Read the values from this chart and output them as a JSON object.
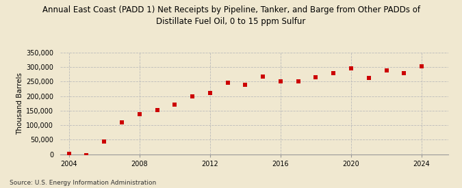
{
  "title": "Annual East Coast (PADD 1) Net Receipts by Pipeline, Tanker, and Barge from Other PADDs of\nDistillate Fuel Oil, 0 to 15 ppm Sulfur",
  "ylabel": "Thousand Barrels",
  "source": "Source: U.S. Energy Information Administration",
  "background_color": "#f0e8d0",
  "plot_bg_color": "#f0e8d0",
  "marker_color": "#cc0000",
  "years": [
    2004,
    2005,
    2006,
    2007,
    2008,
    2009,
    2010,
    2011,
    2012,
    2013,
    2014,
    2015,
    2016,
    2017,
    2018,
    2019,
    2020,
    2021,
    2022,
    2023,
    2024
  ],
  "values": [
    1200,
    -3000,
    43000,
    110000,
    139000,
    152000,
    172000,
    199000,
    211000,
    247000,
    240000,
    268000,
    252000,
    250000,
    265000,
    280000,
    295000,
    262000,
    288000,
    280000,
    303000
  ],
  "ylim": [
    0,
    350000
  ],
  "yticks": [
    0,
    50000,
    100000,
    150000,
    200000,
    250000,
    300000,
    350000
  ],
  "xlim": [
    2003.5,
    2025.5
  ],
  "xticks": [
    2004,
    2008,
    2012,
    2016,
    2020,
    2024
  ],
  "grid_color": "#bbbbbb",
  "title_fontsize": 8.5,
  "label_fontsize": 7.5,
  "tick_fontsize": 7,
  "source_fontsize": 6.5
}
